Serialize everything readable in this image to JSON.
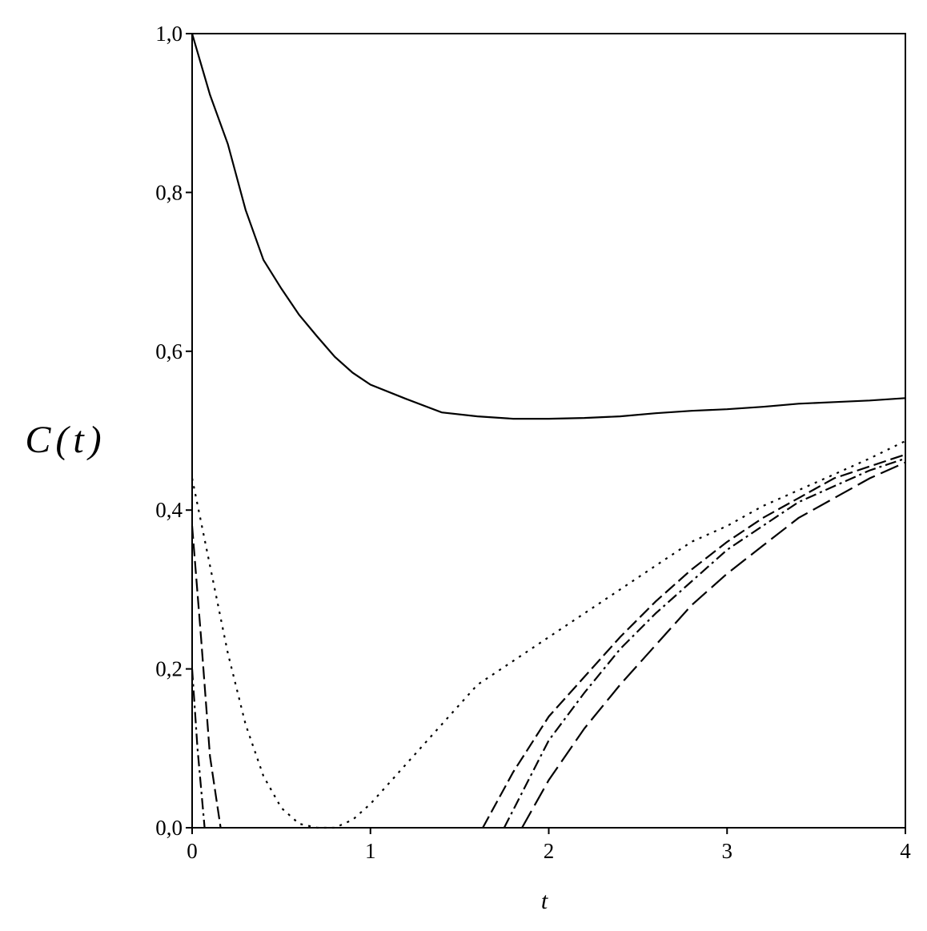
{
  "chart_data": {
    "type": "line",
    "x_label": "t",
    "y_label": "C(t)",
    "xlim": [
      0,
      4
    ],
    "ylim": [
      0,
      1
    ],
    "xticks": [
      0,
      1,
      2,
      3,
      4
    ],
    "yticks": [
      {
        "value": 0,
        "label": "0,0"
      },
      {
        "value": 0.2,
        "label": "0,2"
      },
      {
        "value": 0.4,
        "label": "0,4"
      },
      {
        "value": 0.6,
        "label": "0,6"
      },
      {
        "value": 0.8,
        "label": "0,8"
      },
      {
        "value": 1,
        "label": "1,0"
      }
    ],
    "series": [
      {
        "color": "#000000",
        "dash": "none",
        "x": [
          0,
          0.1,
          0.2,
          0.3,
          0.4,
          0.5,
          0.6,
          0.7,
          0.8,
          0.9,
          1.0,
          1.2,
          1.4,
          1.6,
          1.8,
          2.0,
          2.2,
          2.4,
          2.6,
          2.8,
          3.0,
          3.2,
          3.4,
          3.6,
          3.8,
          4.0
        ],
        "values": [
          1.0,
          0.923,
          0.861,
          0.778,
          0.715,
          0.679,
          0.646,
          0.619,
          0.593,
          0.573,
          0.558,
          0.54,
          0.523,
          0.518,
          0.515,
          0.515,
          0.516,
          0.518,
          0.522,
          0.525,
          0.527,
          0.53,
          0.534,
          0.536,
          0.538,
          0.541
        ]
      },
      {
        "color": "#000000",
        "dash": "3,7",
        "x": [
          0,
          0.1,
          0.2,
          0.3,
          0.4,
          0.5,
          0.6,
          0.7,
          0.8,
          0.9,
          1.0,
          1.2,
          1.4,
          1.6,
          1.8,
          2.0,
          2.2,
          2.4,
          2.6,
          2.8,
          3.0,
          3.2,
          3.4,
          3.6,
          3.8,
          4.0
        ],
        "values": [
          0.44,
          0.33,
          0.22,
          0.13,
          0.065,
          0.025,
          0.005,
          0,
          0,
          0.01,
          0.03,
          0.08,
          0.13,
          0.18,
          0.21,
          0.24,
          0.27,
          0.3,
          0.33,
          0.36,
          0.38,
          0.405,
          0.425,
          0.445,
          0.465,
          0.487
        ]
      },
      {
        "color": "#000000",
        "dash": "16,6",
        "x": [
          0,
          0.05,
          0.1,
          0.16,
          1.0,
          1.63,
          1.8,
          2.0,
          2.2,
          2.4,
          2.6,
          2.8,
          3.0,
          3.2,
          3.4,
          3.6,
          3.8,
          4.0
        ],
        "values": [
          0.38,
          0.24,
          0.09,
          0,
          null,
          0,
          0.07,
          0.14,
          0.19,
          0.24,
          0.285,
          0.325,
          0.36,
          0.39,
          0.415,
          0.44,
          0.455,
          0.47
        ]
      },
      {
        "color": "#000000",
        "dash": "14,5,3,5",
        "x": [
          0,
          0.03,
          0.07,
          1.0,
          1.75,
          2.0,
          2.2,
          2.4,
          2.6,
          2.8,
          3.0,
          3.2,
          3.4,
          3.6,
          3.8,
          4.0
        ],
        "values": [
          0.2,
          0.1,
          0,
          null,
          0,
          0.11,
          0.17,
          0.225,
          0.27,
          0.31,
          0.35,
          0.38,
          0.41,
          0.43,
          0.45,
          0.465
        ]
      },
      {
        "color": "#000000",
        "dash": "24,8",
        "x": [
          1.85,
          2.0,
          2.2,
          2.4,
          2.6,
          2.8,
          3.0,
          3.2,
          3.4,
          3.6,
          3.8,
          4.0
        ],
        "values": [
          0,
          0.06,
          0.125,
          0.18,
          0.23,
          0.28,
          0.32,
          0.355,
          0.39,
          0.415,
          0.44,
          0.46
        ]
      }
    ]
  }
}
